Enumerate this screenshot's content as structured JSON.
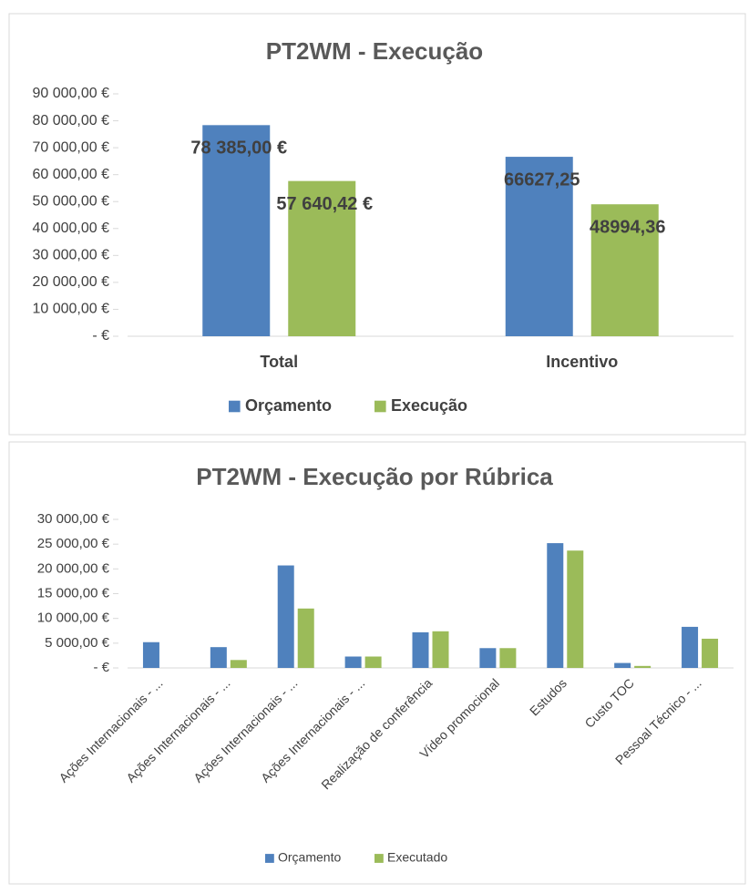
{
  "chart_data": [
    {
      "type": "bar",
      "title": "PT2WM - Execução",
      "categories": [
        "Total",
        "Incentivo"
      ],
      "series": [
        {
          "name": "Orçamento",
          "color": "#4f81bd",
          "values": [
            78385,
            66627.25
          ],
          "value_labels": [
            "78 385,00 €",
            "66627,25"
          ]
        },
        {
          "name": "Execução",
          "color": "#9bbb59",
          "values": [
            57640.42,
            48994.36
          ],
          "value_labels": [
            "57 640,42 €",
            "48994,36"
          ]
        }
      ],
      "ylim": [
        0,
        90000
      ],
      "yticks": [
        {
          "value": 0,
          "label": "-  €"
        },
        {
          "value": 10000,
          "label": "10 000,00 €"
        },
        {
          "value": 20000,
          "label": "20 000,00 €"
        },
        {
          "value": 30000,
          "label": "30 000,00 €"
        },
        {
          "value": 40000,
          "label": "40 000,00 €"
        },
        {
          "value": 50000,
          "label": "50 000,00 €"
        },
        {
          "value": 60000,
          "label": "60 000,00 €"
        },
        {
          "value": 70000,
          "label": "70 000,00 €"
        },
        {
          "value": 80000,
          "label": "80 000,00 €"
        },
        {
          "value": 90000,
          "label": "90 000,00 €"
        }
      ],
      "legend": "bottom"
    },
    {
      "type": "bar",
      "title": "PT2WM - Execução por Rúbrica",
      "categories": [
        "Ações Internacionais - ...",
        "Ações Internacionais - ...",
        "Ações Internacionais - ...",
        "Ações Internacionais - ...",
        "Realização de conferência",
        "Vídeo promocional",
        "Estudos",
        "Custo TOC",
        "Pessoal Técnico - ..."
      ],
      "series": [
        {
          "name": "Orçamento",
          "color": "#4f81bd",
          "values": [
            5200,
            4200,
            20700,
            2300,
            7200,
            4000,
            25200,
            1000,
            8300
          ]
        },
        {
          "name": "Executado",
          "color": "#9bbb59",
          "values": [
            0,
            1600,
            12000,
            2300,
            7400,
            4000,
            23700,
            400,
            5900
          ]
        }
      ],
      "ylim": [
        0,
        30000
      ],
      "yticks": [
        {
          "value": 0,
          "label": "-  €"
        },
        {
          "value": 5000,
          "label": "5 000,00 €"
        },
        {
          "value": 10000,
          "label": "10 000,00 €"
        },
        {
          "value": 15000,
          "label": "15 000,00 €"
        },
        {
          "value": 20000,
          "label": "20 000,00 €"
        },
        {
          "value": 25000,
          "label": "25 000,00 €"
        },
        {
          "value": 30000,
          "label": "30 000,00 €"
        }
      ],
      "legend": "bottom"
    }
  ]
}
